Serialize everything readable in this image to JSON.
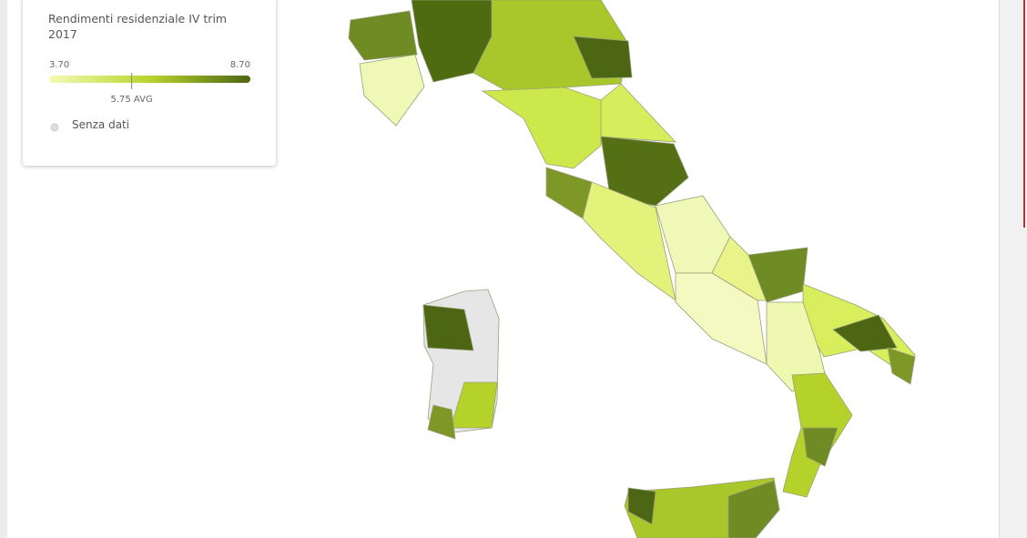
{
  "legend": {
    "title": "Rendimenti residenziale IV trim 2017",
    "scale": {
      "min": {
        "value": 3.7,
        "label": "3.70"
      },
      "max": {
        "value": 8.7,
        "label": "8.70"
      },
      "avg": {
        "value": 5.75,
        "label": "5.75 AVG"
      }
    },
    "colors": [
      "#f4fbb5",
      "#b8d42c",
      "#4d6614"
    ],
    "no_data_label": "Senza dati"
  }
}
